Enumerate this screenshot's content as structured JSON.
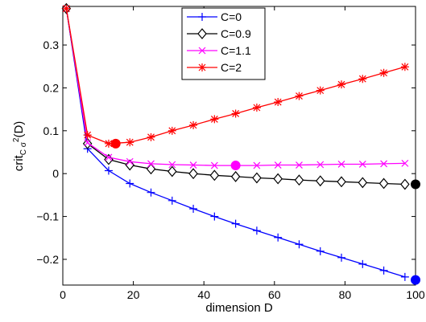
{
  "chart_data": {
    "type": "line",
    "xlabel": "dimension D",
    "ylabel_main": "crit",
    "ylabel_sub": "C σ",
    "ylabel_sup": "2",
    "ylabel_tail": "(D)",
    "xlim": [
      0,
      100
    ],
    "ylim": [
      -0.26,
      0.39
    ],
    "xticks": [
      0,
      20,
      40,
      60,
      80,
      100
    ],
    "yticks": [
      -0.2,
      -0.1,
      0,
      0.1,
      0.2,
      0.3
    ],
    "xtick_labels": [
      "0",
      "20",
      "40",
      "60",
      "80",
      "100"
    ],
    "ytick_labels": [
      "−0.2",
      "−0.1",
      "0",
      "0.1",
      "0.2",
      "0.3"
    ],
    "grid": false,
    "legend_position": "top-center",
    "x": [
      1,
      7,
      13,
      19,
      25,
      31,
      37,
      43,
      49,
      55,
      61,
      67,
      73,
      79,
      85,
      91,
      97
    ],
    "series": [
      {
        "name": "C=0",
        "color": "#0000ff",
        "marker": "plus",
        "values": [
          0.385,
          0.058,
          0.007,
          -0.023,
          -0.044,
          -0.063,
          -0.082,
          -0.1,
          -0.117,
          -0.133,
          -0.149,
          -0.165,
          -0.181,
          -0.196,
          -0.211,
          -0.226,
          -0.241
        ],
        "optimum": {
          "x": 100,
          "y": -0.248
        }
      },
      {
        "name": "C=0.9",
        "color": "#000000",
        "marker": "diamond",
        "values": [
          0.385,
          0.07,
          0.033,
          0.02,
          0.011,
          0.005,
          0.0,
          -0.004,
          -0.007,
          -0.01,
          -0.012,
          -0.015,
          -0.017,
          -0.019,
          -0.021,
          -0.023,
          -0.025
        ],
        "optimum": {
          "x": 100,
          "y": -0.025
        }
      },
      {
        "name": "C=1.1",
        "color": "#ff00ff",
        "marker": "x",
        "values": [
          0.385,
          0.072,
          0.038,
          0.028,
          0.023,
          0.021,
          0.02,
          0.019,
          0.019,
          0.019,
          0.02,
          0.02,
          0.021,
          0.022,
          0.022,
          0.023,
          0.024
        ],
        "optimum": {
          "x": 49,
          "y": 0.019
        }
      },
      {
        "name": "C=2",
        "color": "#ff0000",
        "marker": "star",
        "values": [
          0.385,
          0.09,
          0.07,
          0.073,
          0.085,
          0.1,
          0.113,
          0.127,
          0.14,
          0.154,
          0.167,
          0.181,
          0.194,
          0.208,
          0.221,
          0.235,
          0.249
        ],
        "optimum": {
          "x": 15,
          "y": 0.07
        }
      }
    ]
  }
}
